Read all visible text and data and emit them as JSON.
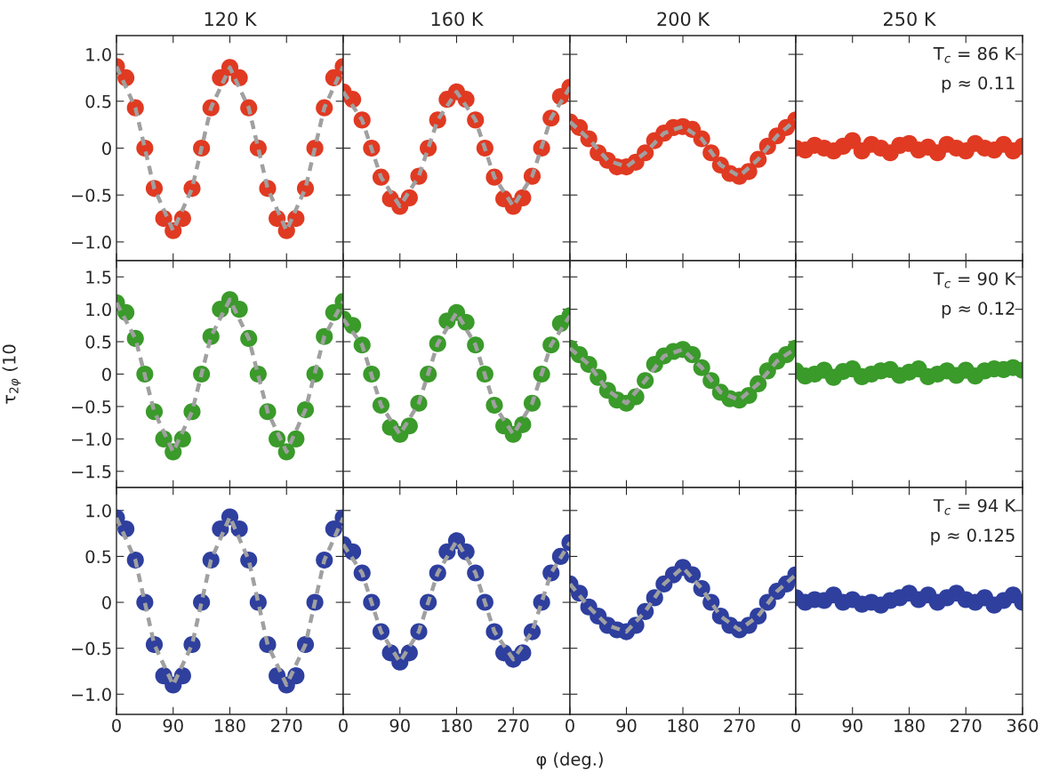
{
  "chart_data": [
    {
      "type": "scatter",
      "title": "120 K",
      "x": [
        0,
        15,
        30,
        45,
        60,
        75,
        90,
        105,
        120,
        135,
        150,
        165,
        180,
        195,
        210,
        225,
        240,
        255,
        270,
        285,
        300,
        315,
        330,
        345,
        360
      ],
      "xlim": [
        0,
        360
      ],
      "xticks": [
        0,
        90,
        180,
        270
      ],
      "ylim": [
        -1.2,
        1.2
      ],
      "yticks": [
        {
          "value": -1,
          "label": "−1.0"
        },
        {
          "value": -0.5,
          "label": "−0.5"
        },
        0,
        0.5,
        {
          "value": 1,
          "label": "1.0"
        }
      ],
      "tick_labels": "y",
      "legend": false,
      "grid": false,
      "series": [
        {
          "marker": "circle",
          "color": "#e03a22",
          "values": [
            0.87,
            0.75,
            0.43,
            0,
            -0.43,
            -0.75,
            -0.88,
            -0.75,
            -0.43,
            0,
            0.43,
            0.75,
            0.86,
            0.75,
            0.43,
            0,
            -0.43,
            -0.75,
            -0.88,
            -0.75,
            -0.43,
            0,
            0.43,
            0.75,
            0.87
          ]
        },
        {
          "type": "line",
          "color": "#a0a0a0",
          "line_style": "dashed",
          "x": [
            0,
            30,
            60,
            90,
            120,
            150,
            180,
            210,
            240,
            270,
            300,
            330,
            360
          ],
          "values": [
            0.87,
            0.43,
            -0.43,
            -0.88,
            -0.43,
            0.43,
            0.86,
            0.43,
            -0.43,
            -0.88,
            -0.43,
            0.43,
            0.87
          ]
        }
      ]
    },
    {
      "type": "scatter",
      "title": "160 K",
      "x": [
        0,
        15,
        30,
        45,
        60,
        75,
        90,
        105,
        120,
        135,
        150,
        165,
        180,
        195,
        210,
        225,
        240,
        255,
        270,
        285,
        300,
        315,
        330,
        345,
        360
      ],
      "xlim": [
        0,
        360
      ],
      "xticks": [
        0,
        90,
        180,
        270
      ],
      "ylim": [
        -1.2,
        1.2
      ],
      "yticks": [
        -1,
        -0.5,
        0,
        0.5,
        1
      ],
      "tick_labels": false,
      "legend": false,
      "grid": false,
      "series": [
        {
          "marker": "circle",
          "color": "#e03a22",
          "values": [
            0.6,
            0.52,
            0.3,
            0,
            -0.31,
            -0.54,
            -0.62,
            -0.53,
            -0.3,
            0,
            0.3,
            0.52,
            0.6,
            0.52,
            0.3,
            0,
            -0.31,
            -0.54,
            -0.62,
            -0.53,
            -0.3,
            0,
            0.32,
            0.55,
            0.65
          ]
        },
        {
          "type": "line",
          "color": "#a0a0a0",
          "line_style": "dashed",
          "x": [
            0,
            30,
            60,
            90,
            120,
            150,
            180,
            210,
            240,
            270,
            300,
            330,
            360
          ],
          "values": [
            0.6,
            0.3,
            -0.31,
            -0.62,
            -0.3,
            0.3,
            0.6,
            0.3,
            -0.31,
            -0.62,
            -0.3,
            0.32,
            0.65
          ]
        }
      ]
    },
    {
      "type": "scatter",
      "title": "200 K",
      "x": [
        0,
        15,
        30,
        45,
        60,
        75,
        90,
        105,
        120,
        135,
        150,
        165,
        180,
        195,
        210,
        225,
        240,
        255,
        270,
        285,
        300,
        315,
        330,
        345,
        360
      ],
      "xlim": [
        0,
        360
      ],
      "xticks": [
        0,
        90,
        180,
        270
      ],
      "ylim": [
        -1.2,
        1.2
      ],
      "yticks": [
        -1,
        -0.5,
        0,
        0.5,
        1
      ],
      "tick_labels": false,
      "legend": false,
      "grid": false,
      "series": [
        {
          "marker": "circle",
          "color": "#e03a22",
          "values": [
            0.28,
            0.22,
            0.1,
            -0.05,
            -0.13,
            -0.2,
            -0.2,
            -0.15,
            -0.05,
            0.08,
            0.16,
            0.22,
            0.23,
            0.2,
            0.1,
            -0.05,
            -0.18,
            -0.27,
            -0.3,
            -0.25,
            -0.12,
            0.02,
            0.13,
            0.22,
            0.3
          ]
        },
        {
          "type": "line",
          "color": "#a0a0a0",
          "line_style": "dashed",
          "x": [
            0,
            30,
            60,
            90,
            120,
            150,
            180,
            210,
            240,
            270,
            300,
            330,
            360
          ],
          "values": [
            0.28,
            0.1,
            -0.13,
            -0.2,
            -0.05,
            0.16,
            0.23,
            0.1,
            -0.18,
            -0.3,
            -0.12,
            0.13,
            0.3
          ]
        }
      ]
    },
    {
      "type": "scatter",
      "title": "250 K",
      "annotations": [
        "T$_{c}$ = 86 K",
        "p ≈ 0.11"
      ],
      "x": [
        0,
        15,
        30,
        45,
        60,
        75,
        90,
        105,
        120,
        135,
        150,
        165,
        180,
        195,
        210,
        225,
        240,
        255,
        270,
        285,
        300,
        315,
        330,
        345,
        360
      ],
      "xlim": [
        0,
        360
      ],
      "xticks": [
        0,
        90,
        180,
        270,
        360
      ],
      "ylim": [
        -1.2,
        1.2
      ],
      "yticks": [
        -1,
        -0.5,
        0,
        0.5,
        1
      ],
      "tick_labels": false,
      "legend": false,
      "grid": false,
      "series": [
        {
          "marker": "circle",
          "color": "#e03a22",
          "values": [
            0.0,
            -0.02,
            0.03,
            0.0,
            -0.03,
            0.02,
            0.08,
            -0.03,
            0.04,
            0.0,
            -0.05,
            0.03,
            0.05,
            -0.02,
            0.01,
            -0.05,
            0.04,
            0.0,
            -0.03,
            0.05,
            0.0,
            -0.02,
            0.04,
            -0.03,
            0.02
          ]
        }
      ]
    },
    {
      "type": "scatter",
      "ylabel": "τ$_{2φ}$ (10",
      "x": [
        0,
        15,
        30,
        45,
        60,
        75,
        90,
        105,
        120,
        135,
        150,
        165,
        180,
        195,
        210,
        225,
        240,
        255,
        270,
        285,
        300,
        315,
        330,
        345,
        360
      ],
      "xlim": [
        0,
        360
      ],
      "xticks": [
        0,
        90,
        180,
        270
      ],
      "ylim": [
        -1.75,
        1.75
      ],
      "yticks": [
        {
          "value": -1.5,
          "label": "−1.5"
        },
        {
          "value": -1,
          "label": "−1.0"
        },
        {
          "value": -0.5,
          "label": "−0.5"
        },
        0,
        0.5,
        {
          "value": 1,
          "label": "1.0"
        },
        1.5
      ],
      "tick_labels": "y",
      "legend": false,
      "grid": false,
      "series": [
        {
          "marker": "circle",
          "color": "#3a9a2a",
          "values": [
            1.1,
            0.95,
            0.55,
            0,
            -0.58,
            -1.0,
            -1.2,
            -1.0,
            -0.58,
            0,
            0.58,
            1.0,
            1.15,
            1.0,
            0.55,
            0,
            -0.58,
            -1.0,
            -1.2,
            -1.0,
            -0.55,
            0,
            0.58,
            0.95,
            1.12
          ]
        },
        {
          "type": "line",
          "color": "#a0a0a0",
          "line_style": "dashed",
          "x": [
            0,
            30,
            60,
            90,
            120,
            150,
            180,
            210,
            240,
            270,
            300,
            330,
            360
          ],
          "values": [
            1.1,
            0.55,
            -0.58,
            -1.2,
            -0.58,
            0.58,
            1.15,
            0.55,
            -0.58,
            -1.2,
            -0.55,
            0.58,
            1.12
          ]
        }
      ]
    },
    {
      "type": "scatter",
      "x": [
        0,
        15,
        30,
        45,
        60,
        75,
        90,
        105,
        120,
        135,
        150,
        165,
        180,
        195,
        210,
        225,
        240,
        255,
        270,
        285,
        300,
        315,
        330,
        345,
        360
      ],
      "xlim": [
        0,
        360
      ],
      "xticks": [
        0,
        90,
        180,
        270
      ],
      "ylim": [
        -1.75,
        1.75
      ],
      "yticks": [
        -1.5,
        -1,
        -0.5,
        0,
        0.5,
        1,
        1.5
      ],
      "tick_labels": false,
      "legend": false,
      "grid": false,
      "series": [
        {
          "marker": "circle",
          "color": "#3a9a2a",
          "values": [
            0.85,
            0.75,
            0.45,
            0,
            -0.48,
            -0.82,
            -0.93,
            -0.8,
            -0.45,
            0,
            0.47,
            0.82,
            0.95,
            0.8,
            0.45,
            0,
            -0.48,
            -0.8,
            -0.93,
            -0.78,
            -0.45,
            0,
            0.45,
            0.78,
            0.9
          ]
        },
        {
          "type": "line",
          "color": "#a0a0a0",
          "line_style": "dashed",
          "x": [
            0,
            30,
            60,
            90,
            120,
            150,
            180,
            210,
            240,
            270,
            300,
            330,
            360
          ],
          "values": [
            0.85,
            0.45,
            -0.48,
            -0.93,
            -0.45,
            0.47,
            0.95,
            0.45,
            -0.48,
            -0.93,
            -0.45,
            0.45,
            0.9
          ]
        }
      ]
    },
    {
      "type": "scatter",
      "x": [
        0,
        15,
        30,
        45,
        60,
        75,
        90,
        105,
        120,
        135,
        150,
        165,
        180,
        195,
        210,
        225,
        240,
        255,
        270,
        285,
        300,
        315,
        330,
        345,
        360
      ],
      "xlim": [
        0,
        360
      ],
      "xticks": [
        0,
        90,
        180,
        270
      ],
      "ylim": [
        -1.75,
        1.75
      ],
      "yticks": [
        -1.5,
        -1,
        -0.5,
        0,
        0.5,
        1,
        1.5
      ],
      "tick_labels": false,
      "legend": false,
      "grid": false,
      "series": [
        {
          "marker": "circle",
          "color": "#3a9a2a",
          "values": [
            0.4,
            0.3,
            0.15,
            -0.05,
            -0.25,
            -0.4,
            -0.45,
            -0.35,
            -0.1,
            0.15,
            0.28,
            0.35,
            0.38,
            0.3,
            0.1,
            -0.1,
            -0.28,
            -0.38,
            -0.4,
            -0.33,
            -0.15,
            0.05,
            0.2,
            0.3,
            0.4
          ]
        },
        {
          "type": "line",
          "color": "#a0a0a0",
          "line_style": "dashed",
          "x": [
            0,
            30,
            60,
            90,
            120,
            150,
            180,
            210,
            240,
            270,
            300,
            330,
            360
          ],
          "values": [
            0.4,
            0.15,
            -0.25,
            -0.45,
            -0.1,
            0.28,
            0.38,
            0.1,
            -0.28,
            -0.4,
            -0.15,
            0.2,
            0.4
          ]
        }
      ]
    },
    {
      "type": "scatter",
      "annotations": [
        "T$_{c}$ = 90 K",
        "p ≈ 0.12"
      ],
      "x": [
        0,
        15,
        30,
        45,
        60,
        75,
        90,
        105,
        120,
        135,
        150,
        165,
        180,
        195,
        210,
        225,
        240,
        255,
        270,
        285,
        300,
        315,
        330,
        345,
        360
      ],
      "xlim": [
        0,
        360
      ],
      "xticks": [
        0,
        90,
        180,
        270,
        360
      ],
      "ylim": [
        -1.75,
        1.75
      ],
      "yticks": [
        -1.5,
        -1,
        -0.5,
        0,
        0.5,
        1,
        1.5
      ],
      "tick_labels": false,
      "legend": false,
      "grid": false,
      "series": [
        {
          "marker": "circle",
          "color": "#3a9a2a",
          "values": [
            0.05,
            -0.03,
            0.0,
            0.06,
            -0.05,
            0.04,
            0.08,
            -0.04,
            0.0,
            0.05,
            0.07,
            -0.02,
            0.03,
            0.08,
            -0.04,
            0.0,
            0.05,
            -0.02,
            0.06,
            -0.03,
            0.05,
            0.08,
            0.07,
            0.1,
            0.06
          ]
        }
      ]
    },
    {
      "type": "scatter",
      "x": [
        0,
        15,
        30,
        45,
        60,
        75,
        90,
        105,
        120,
        135,
        150,
        165,
        180,
        195,
        210,
        225,
        240,
        255,
        270,
        285,
        300,
        315,
        330,
        345,
        360
      ],
      "xlim": [
        0,
        360
      ],
      "xticks": [
        0,
        90,
        180,
        270
      ],
      "ylim": [
        -1.22,
        1.25
      ],
      "yticks": [
        {
          "value": -1,
          "label": "−1.0"
        },
        {
          "value": -0.5,
          "label": "−0.5"
        },
        0,
        0.5,
        {
          "value": 1,
          "label": "1.0"
        }
      ],
      "legend": false,
      "grid": false,
      "series": [
        {
          "marker": "circle",
          "color": "#2e3f9e",
          "values": [
            0.92,
            0.8,
            0.46,
            0,
            -0.46,
            -0.8,
            -0.9,
            -0.8,
            -0.46,
            0,
            0.46,
            0.8,
            0.93,
            0.8,
            0.46,
            0,
            -0.46,
            -0.8,
            -0.9,
            -0.8,
            -0.46,
            0,
            0.46,
            0.8,
            0.92
          ]
        },
        {
          "type": "line",
          "color": "#a0a0a0",
          "line_style": "dashed",
          "x": [
            0,
            30,
            60,
            90,
            120,
            150,
            180,
            210,
            240,
            270,
            300,
            330,
            360
          ],
          "values": [
            0.92,
            0.46,
            -0.46,
            -0.9,
            -0.46,
            0.46,
            0.93,
            0.46,
            -0.46,
            -0.9,
            -0.46,
            0.46,
            0.92
          ]
        }
      ]
    },
    {
      "type": "scatter",
      "xlabel": "φ (deg.)",
      "x": [
        0,
        15,
        30,
        45,
        60,
        75,
        90,
        105,
        120,
        135,
        150,
        165,
        180,
        195,
        210,
        225,
        240,
        255,
        270,
        285,
        300,
        315,
        330,
        345,
        360
      ],
      "xlim": [
        0,
        360
      ],
      "xticks": [
        0,
        90,
        180,
        270
      ],
      "ylim": [
        -1.22,
        1.25
      ],
      "yticks": [
        -1,
        -0.5,
        0,
        0.5,
        1
      ],
      "tick_labels": "x",
      "legend": false,
      "grid": false,
      "series": [
        {
          "marker": "circle",
          "color": "#2e3f9e",
          "values": [
            0.63,
            0.55,
            0.32,
            0,
            -0.32,
            -0.55,
            -0.65,
            -0.55,
            -0.32,
            0,
            0.32,
            0.55,
            0.67,
            0.55,
            0.32,
            0,
            -0.32,
            -0.55,
            -0.62,
            -0.55,
            -0.32,
            0,
            0.32,
            0.5,
            0.65
          ]
        },
        {
          "type": "line",
          "color": "#a0a0a0",
          "line_style": "dashed",
          "x": [
            0,
            30,
            60,
            90,
            120,
            150,
            180,
            210,
            240,
            270,
            300,
            330,
            360
          ],
          "values": [
            0.63,
            0.32,
            -0.32,
            -0.65,
            -0.32,
            0.32,
            0.67,
            0.32,
            -0.32,
            -0.62,
            -0.32,
            0.32,
            0.65
          ]
        }
      ]
    },
    {
      "type": "scatter",
      "x": [
        0,
        15,
        30,
        45,
        60,
        75,
        90,
        105,
        120,
        135,
        150,
        165,
        180,
        195,
        210,
        225,
        240,
        255,
        270,
        285,
        300,
        315,
        330,
        345,
        360
      ],
      "xlim": [
        0,
        360
      ],
      "xticks": [
        0,
        90,
        180,
        270
      ],
      "ylim": [
        -1.22,
        1.25
      ],
      "yticks": [
        -1,
        -0.5,
        0,
        0.5,
        1
      ],
      "tick_labels": "x",
      "legend": false,
      "grid": false,
      "series": [
        {
          "marker": "circle",
          "color": "#2e3f9e",
          "values": [
            0.2,
            0.1,
            -0.05,
            -0.15,
            -0.25,
            -0.3,
            -0.32,
            -0.25,
            -0.1,
            0.05,
            0.2,
            0.3,
            0.38,
            0.3,
            0.15,
            0.0,
            -0.15,
            -0.25,
            -0.3,
            -0.25,
            -0.15,
            0.0,
            0.12,
            0.2,
            0.3
          ]
        },
        {
          "type": "line",
          "color": "#a0a0a0",
          "line_style": "dashed",
          "x": [
            0,
            30,
            60,
            90,
            120,
            150,
            180,
            210,
            240,
            270,
            300,
            330,
            360
          ],
          "values": [
            0.2,
            -0.05,
            -0.25,
            -0.32,
            -0.1,
            0.2,
            0.38,
            0.15,
            -0.15,
            -0.3,
            -0.15,
            0.12,
            0.3
          ]
        }
      ]
    },
    {
      "type": "scatter",
      "annotations": [
        "T$_{c}$ = 94 K",
        "p ≈ 0.125"
      ],
      "x": [
        0,
        15,
        30,
        45,
        60,
        75,
        90,
        105,
        120,
        135,
        150,
        165,
        180,
        195,
        210,
        225,
        240,
        255,
        270,
        285,
        300,
        315,
        330,
        345,
        360
      ],
      "xlim": [
        0,
        360
      ],
      "xticks": [
        0,
        90,
        180,
        270,
        360
      ],
      "ylim": [
        -1.22,
        1.25
      ],
      "yticks": [
        -1,
        -0.5,
        0,
        0.5,
        1
      ],
      "tick_labels": "x",
      "legend": false,
      "grid": false,
      "series": [
        {
          "marker": "circle",
          "color": "#2e3f9e",
          "values": [
            0.05,
            0.0,
            0.03,
            0.02,
            0.08,
            0.0,
            0.03,
            -0.02,
            0.0,
            -0.03,
            0.02,
            0.05,
            0.1,
            0.03,
            0.08,
            0.0,
            0.05,
            0.1,
            0.03,
            0.0,
            0.05,
            -0.03,
            0.02,
            0.08,
            0.0
          ]
        }
      ]
    }
  ]
}
